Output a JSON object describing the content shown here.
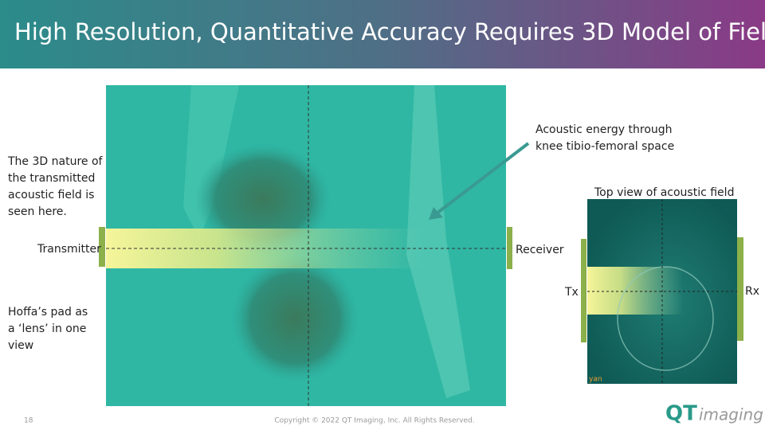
{
  "header": {
    "title": "High Resolution, Quantitative Accuracy Requires 3D Model of Field Energy"
  },
  "left_notes": {
    "field_note": [
      "The 3D nature of",
      "the transmitted",
      "acoustic field is",
      "seen here."
    ],
    "hoffa_note": [
      "Hoffa’s pad  as",
      "a ‘lens’  in one",
      "view"
    ]
  },
  "main_image": {
    "transmitter": "Transmitter",
    "receiver": "Receiver",
    "annotation": [
      "Acoustic  energy  through",
      "knee tibio-femoral space"
    ]
  },
  "top_view": {
    "title": "Top view of acoustic field",
    "tx": "Tx",
    "rx": "Rx",
    "corner_tag": "yan"
  },
  "footer": {
    "page_number": "18",
    "copyright": "Copyright © 2022 QT Imaging, Inc. All Rights Reserved.",
    "logo": {
      "mark": "QT",
      "word": "imaging"
    }
  }
}
